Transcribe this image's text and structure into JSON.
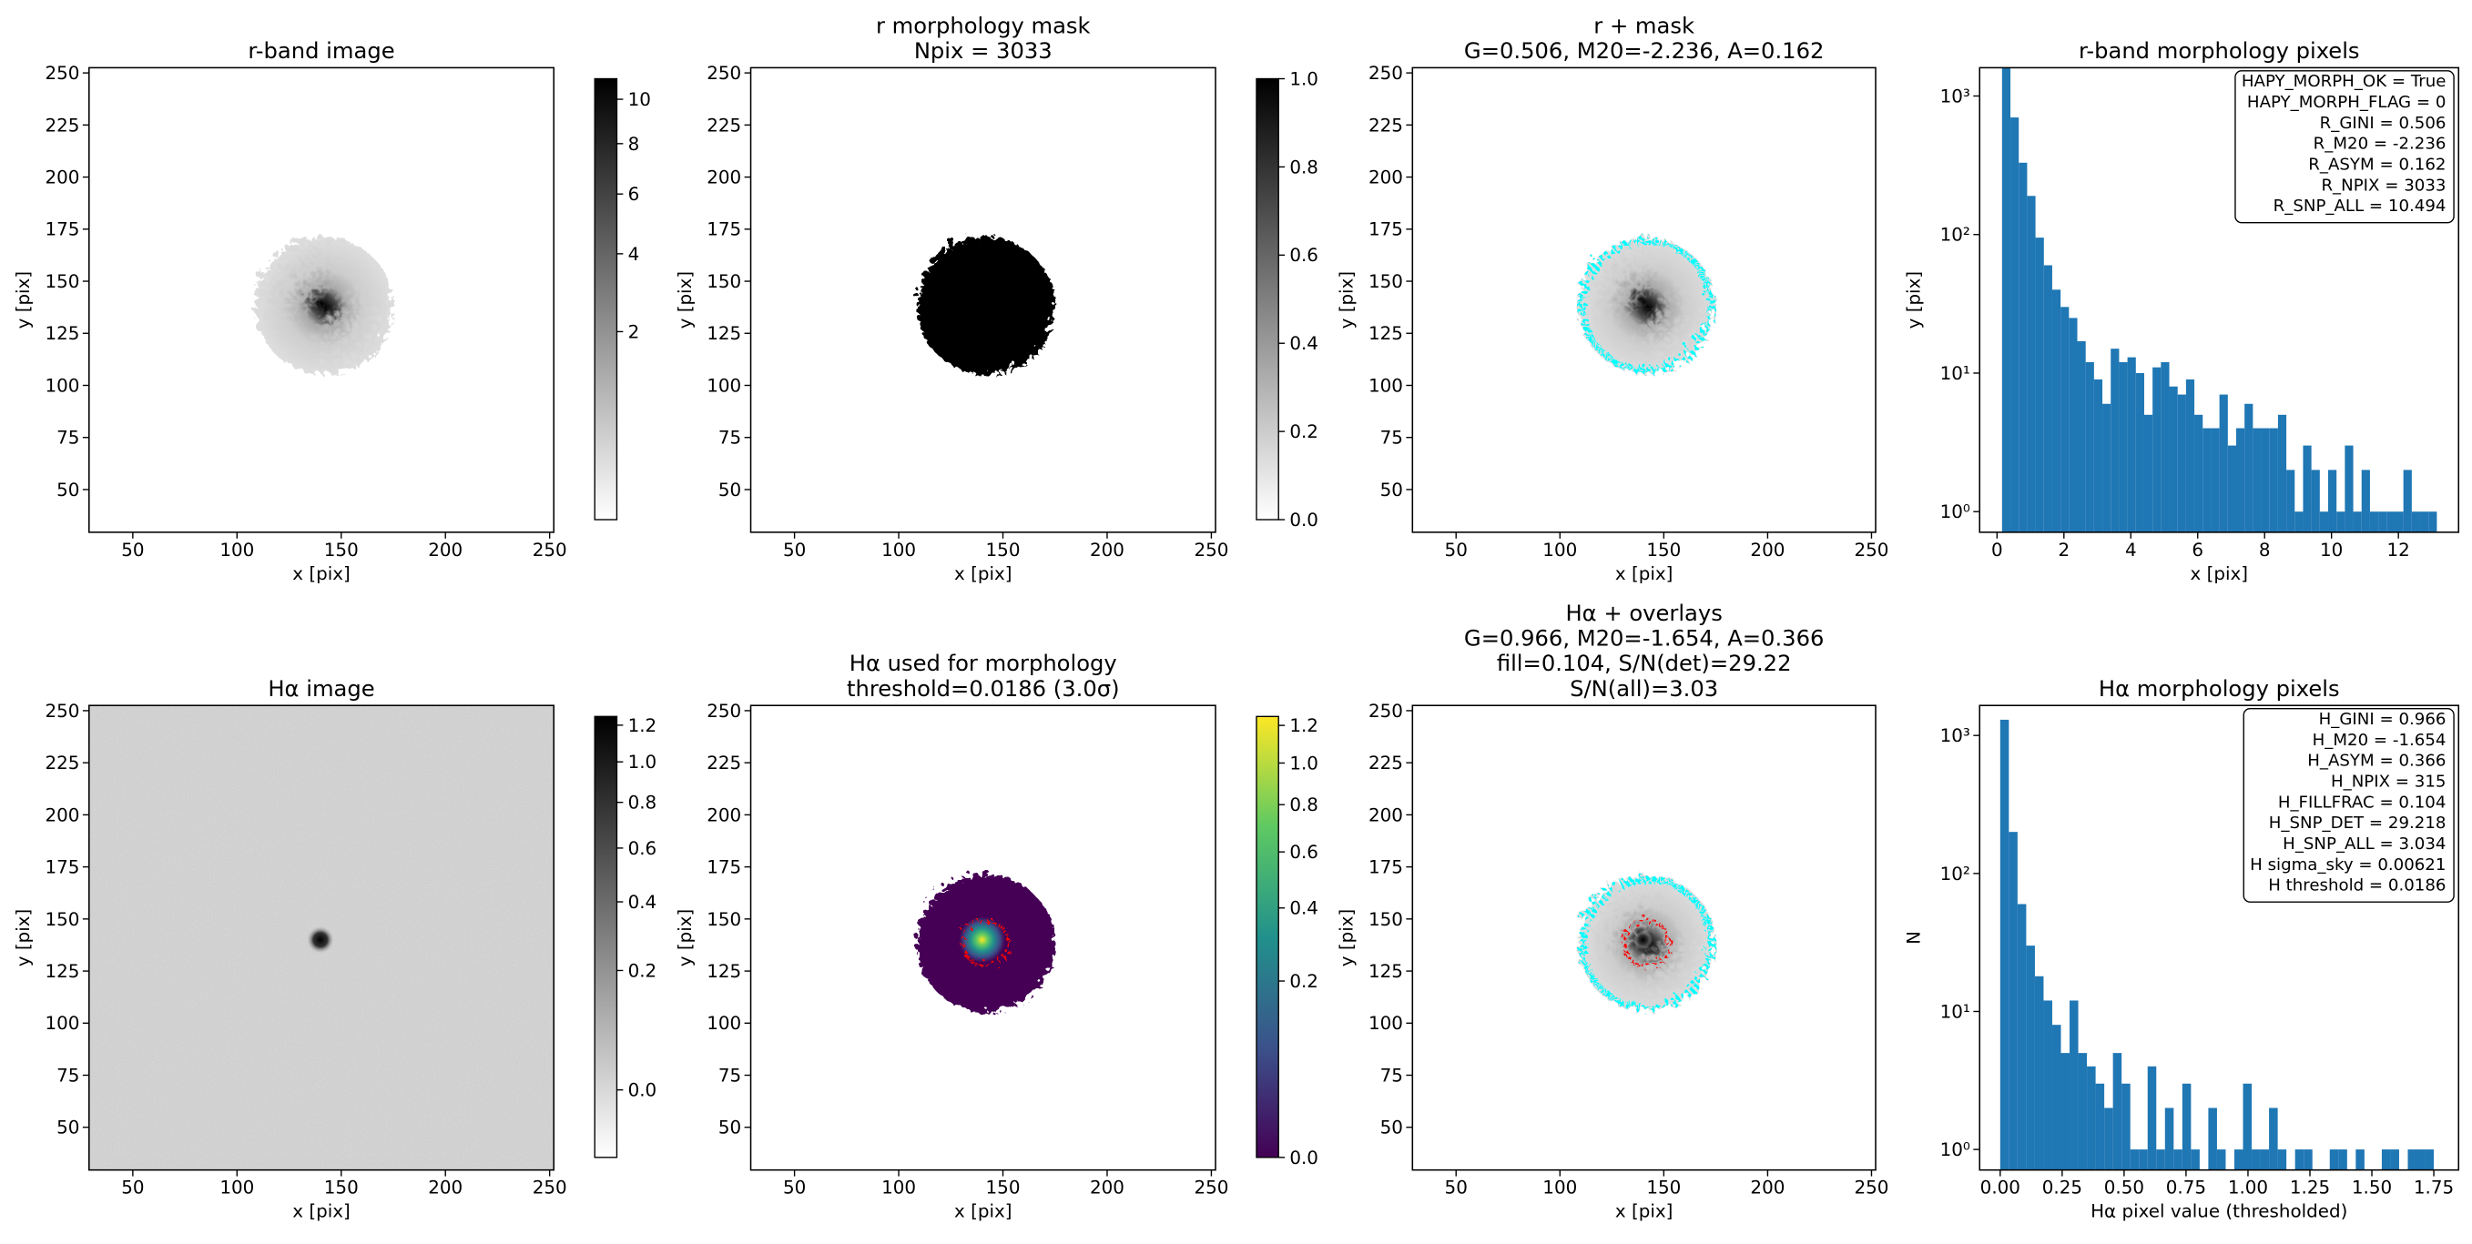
{
  "chart_data": [
    {
      "type": "image",
      "title": [
        "r-band image"
      ],
      "xlabel": "x [pix]",
      "ylabel": "y [pix]",
      "xlim": [
        29,
        252
      ],
      "ylim": [
        29.5,
        252.5
      ],
      "xticks": [
        50,
        100,
        150,
        200,
        250
      ],
      "yticks": [
        50,
        75,
        100,
        125,
        150,
        175,
        200,
        225,
        250
      ],
      "colorbar": {
        "cmap": "gray_r",
        "stretch": "sqrt",
        "clim": [
          0,
          11
        ],
        "ticks": [
          2,
          4,
          6,
          8,
          10
        ]
      }
    },
    {
      "type": "image",
      "title": [
        "r morphology mask",
        "Npix = 3033"
      ],
      "xlabel": "x [pix]",
      "ylabel": "y [pix]",
      "xlim": [
        29,
        252
      ],
      "ylim": [
        29.5,
        252.5
      ],
      "xticks": [
        50,
        100,
        150,
        200,
        250
      ],
      "yticks": [
        50,
        75,
        100,
        125,
        150,
        175,
        200,
        225,
        250
      ],
      "colorbar": {
        "cmap": "gray_r",
        "stretch": "linear",
        "clim": [
          0,
          1
        ],
        "ticks": [
          {
            "value": 0,
            "label": "0.0"
          },
          0.2,
          0.4,
          0.6,
          0.8,
          {
            "value": 1,
            "label": "1.0"
          }
        ]
      }
    },
    {
      "type": "image",
      "title": [
        "r + mask",
        "G=0.506, M20=-2.236, A=0.162"
      ],
      "xlabel": "x [pix]",
      "ylabel": "y [pix]",
      "xlim": [
        29,
        252
      ],
      "ylim": [
        29.5,
        252.5
      ],
      "xticks": [
        50,
        100,
        150,
        200,
        250
      ],
      "yticks": [
        50,
        75,
        100,
        125,
        150,
        175,
        200,
        225,
        250
      ]
    },
    {
      "type": "histogram",
      "title": [
        "r-band morphology pixels"
      ],
      "xlabel": "x [pix]",
      "ylabel": "y [pix]",
      "color": "#1f77b4",
      "log_y": true,
      "bins": [
        0.15,
        0.4,
        0.65,
        0.9,
        1.15,
        1.4,
        1.65,
        1.9,
        2.15,
        2.4,
        2.65,
        2.9,
        3.15,
        3.4,
        3.65,
        3.9,
        4.15,
        4.4,
        4.65,
        4.9,
        5.15,
        5.4,
        5.65,
        5.9,
        6.15,
        6.4,
        6.65,
        6.9,
        7.15,
        7.4,
        7.65,
        7.9,
        8.15,
        8.4,
        8.65,
        8.9,
        9.15,
        9.4,
        9.65,
        9.9,
        10.15,
        10.4,
        10.65,
        10.9,
        11.15,
        11.4,
        11.65,
        11.9,
        12.15,
        12.4,
        12.65,
        12.9,
        13.15
      ],
      "counts": [
        1600,
        700,
        330,
        190,
        95,
        60,
        40,
        30,
        25,
        17,
        12,
        9,
        6,
        15,
        12,
        13,
        10,
        5,
        11,
        12,
        8,
        7,
        9,
        5,
        4,
        4,
        7,
        3,
        4,
        6,
        4,
        4,
        4,
        5,
        2,
        1,
        3,
        2,
        1,
        2,
        1,
        3,
        1,
        2,
        1,
        1,
        1,
        1,
        2,
        1,
        1,
        1
      ],
      "xlim": [
        -0.52,
        13.8
      ],
      "ylim": [
        0.71,
        1600
      ],
      "xticks": [
        0,
        2,
        4,
        6,
        8,
        10,
        12
      ],
      "yticks": [
        {
          "value": 1,
          "label": "10⁰"
        },
        {
          "value": 10,
          "label": "10¹"
        },
        {
          "value": 100,
          "label": "10²"
        },
        {
          "value": 1000,
          "label": "10³"
        }
      ],
      "annotation": [
        "HAPY_MORPH_OK = True",
        "HAPY_MORPH_FLAG = 0",
        "R_GINI = 0.506",
        "R_M20 = -2.236",
        "R_ASYM = 0.162",
        "R_NPIX = 3033",
        "R_SNP_ALL = 10.494"
      ]
    },
    {
      "type": "image",
      "title": [
        "Hα image"
      ],
      "xlabel": "x [pix]",
      "ylabel": "y [pix]",
      "xlim": [
        29,
        252
      ],
      "ylim": [
        29.5,
        252.5
      ],
      "xticks": [
        50,
        100,
        150,
        200,
        250
      ],
      "yticks": [
        50,
        75,
        100,
        125,
        150,
        175,
        200,
        225,
        250
      ],
      "colorbar": {
        "cmap": "gray_r",
        "stretch": "sqrt",
        "clim": [
          -0.03,
          1.25
        ],
        "ticks": [
          {
            "value": 0,
            "label": "0.0"
          },
          0.2,
          0.4,
          0.6,
          0.8,
          {
            "value": 1,
            "label": "1.0"
          },
          1.2
        ]
      }
    },
    {
      "type": "image",
      "title": [
        "Hα used for morphology",
        "threshold=0.0186 (3.0σ)"
      ],
      "xlabel": "x [pix]",
      "ylabel": "y [pix]",
      "xlim": [
        29,
        252
      ],
      "ylim": [
        29.5,
        252.5
      ],
      "xticks": [
        50,
        100,
        150,
        200,
        250
      ],
      "yticks": [
        50,
        75,
        100,
        125,
        150,
        175,
        200,
        225,
        250
      ],
      "colorbar": {
        "cmap": "viridis",
        "stretch": "sqrt",
        "clim": [
          0,
          1.25
        ],
        "ticks": [
          {
            "value": 0,
            "label": "0.0"
          },
          0.2,
          0.4,
          0.6,
          0.8,
          {
            "value": 1,
            "label": "1.0"
          },
          1.2
        ]
      }
    },
    {
      "type": "image",
      "title": [
        "Hα + overlays",
        "G=0.966, M20=-1.654, A=0.366",
        "fill=0.104, S/N(det)=29.22",
        "S/N(all)=3.03"
      ],
      "xlabel": "x [pix]",
      "ylabel": "y [pix]",
      "xlim": [
        29,
        252
      ],
      "ylim": [
        29.5,
        252.5
      ],
      "xticks": [
        50,
        100,
        150,
        200,
        250
      ],
      "yticks": [
        50,
        75,
        100,
        125,
        150,
        175,
        200,
        225,
        250
      ]
    },
    {
      "type": "histogram",
      "title": [
        "Hα morphology pixels"
      ],
      "xlabel": "Hα pixel value (thresholded)",
      "ylabel": "N",
      "color": "#1f77b4",
      "log_y": true,
      "bins": [
        0,
        0.035,
        0.07,
        0.105,
        0.14,
        0.175,
        0.21,
        0.245,
        0.28,
        0.315,
        0.35,
        0.385,
        0.42,
        0.455,
        0.49,
        0.525,
        0.56,
        0.595,
        0.63,
        0.665,
        0.7,
        0.735,
        0.77,
        0.805,
        0.84,
        0.875,
        0.91,
        0.945,
        0.98,
        1.015,
        1.05,
        1.085,
        1.12,
        1.155,
        1.19,
        1.225,
        1.26,
        1.295,
        1.33,
        1.365,
        1.4,
        1.435,
        1.47,
        1.505,
        1.54,
        1.575,
        1.61,
        1.645,
        1.68,
        1.715,
        1.75
      ],
      "counts": [
        1300,
        200,
        60,
        30,
        18,
        12,
        8,
        5,
        12,
        5,
        4,
        3,
        2,
        5,
        3,
        1,
        1,
        4,
        1,
        2,
        1,
        3,
        1,
        0,
        2,
        1,
        0,
        1,
        3,
        1,
        1,
        2,
        1,
        0,
        1,
        1,
        0,
        0,
        1,
        1,
        0,
        1,
        0,
        0,
        1,
        1,
        0,
        1,
        1,
        1
      ],
      "xlim": [
        -0.083,
        1.85
      ],
      "ylim": [
        0.71,
        1650
      ],
      "xticks": [
        {
          "value": 0,
          "label": "0.00"
        },
        0.25,
        {
          "value": 0.5,
          "label": "0.50"
        },
        0.75,
        {
          "value": 1,
          "label": "1.00"
        },
        1.25,
        {
          "value": 1.5,
          "label": "1.50"
        },
        1.75
      ],
      "yticks": [
        {
          "value": 1,
          "label": "10⁰"
        },
        {
          "value": 10,
          "label": "10¹"
        },
        {
          "value": 100,
          "label": "10²"
        },
        {
          "value": 1000,
          "label": "10³"
        }
      ],
      "annotation": [
        "H_GINI = 0.966",
        "H_M20 = -1.654",
        "H_ASYM = 0.366",
        "H_NPIX = 315",
        "H_FILLFRAC = 0.104",
        "H_SNP_DET = 29.218",
        "H_SNP_ALL = 3.034",
        "H sigma_sky = 0.00621",
        "H threshold = 0.0186"
      ]
    }
  ]
}
